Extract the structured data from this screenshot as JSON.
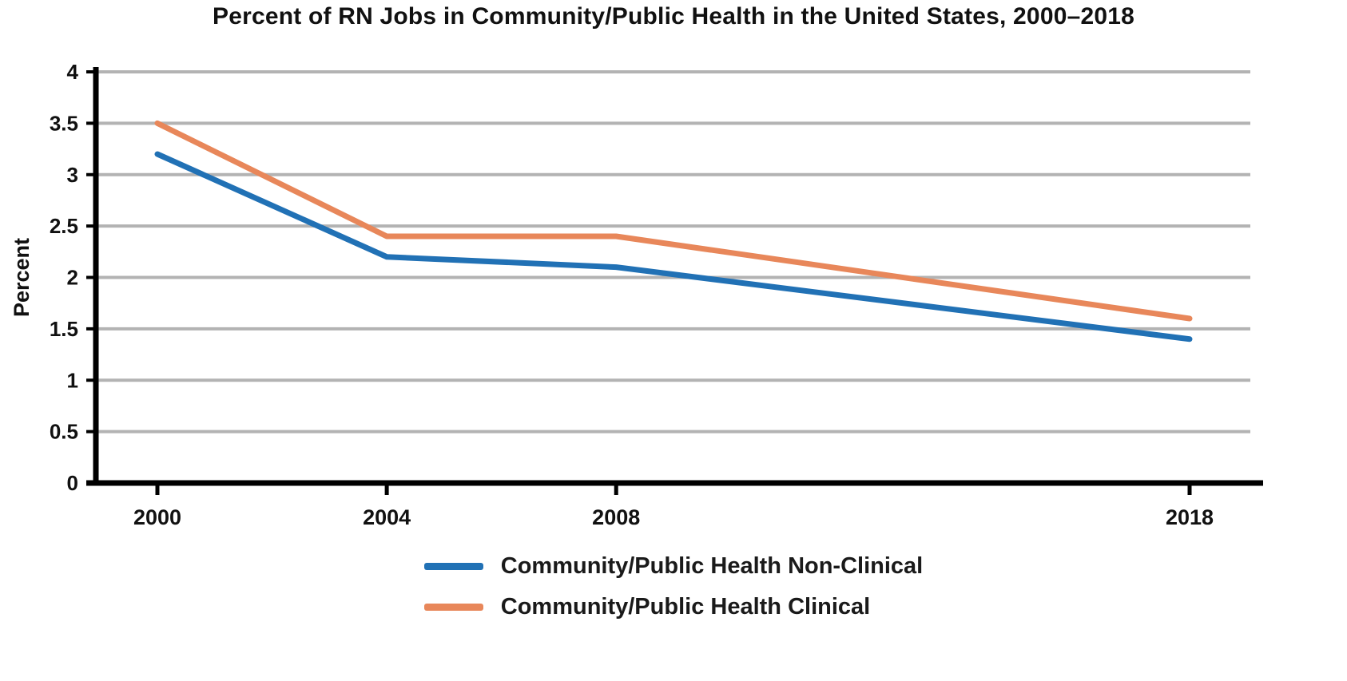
{
  "chart_data": {
    "type": "line",
    "title": "Percent of RN Jobs in Community/Public Health in the United States, 2000–2018",
    "x": [
      2000,
      2004,
      2008,
      2018
    ],
    "xticks": [
      "2000",
      "2004",
      "2008",
      "2018"
    ],
    "xlim": [
      2000,
      2018
    ],
    "ylim": [
      0,
      4
    ],
    "ytick_step": 0.5,
    "ytick_labels": [
      "0",
      "0.5",
      "1",
      "1.5",
      "2",
      "2.5",
      "3",
      "3.5",
      "4"
    ],
    "xlabel": "",
    "ylabel": "Percent",
    "grid": true,
    "legend_position": "bottom",
    "series": [
      {
        "name": "Community/Public Health Non-Clinical",
        "color": "#2171B5",
        "values": [
          3.2,
          2.2,
          2.1,
          1.4
        ]
      },
      {
        "name": "Community/Public Health Clinical",
        "color": "#E8875A",
        "values": [
          3.5,
          2.4,
          2.4,
          1.6
        ]
      }
    ],
    "colors": {
      "grid": "#B3B3B3",
      "axis": "#000000",
      "text": "#111111"
    }
  }
}
